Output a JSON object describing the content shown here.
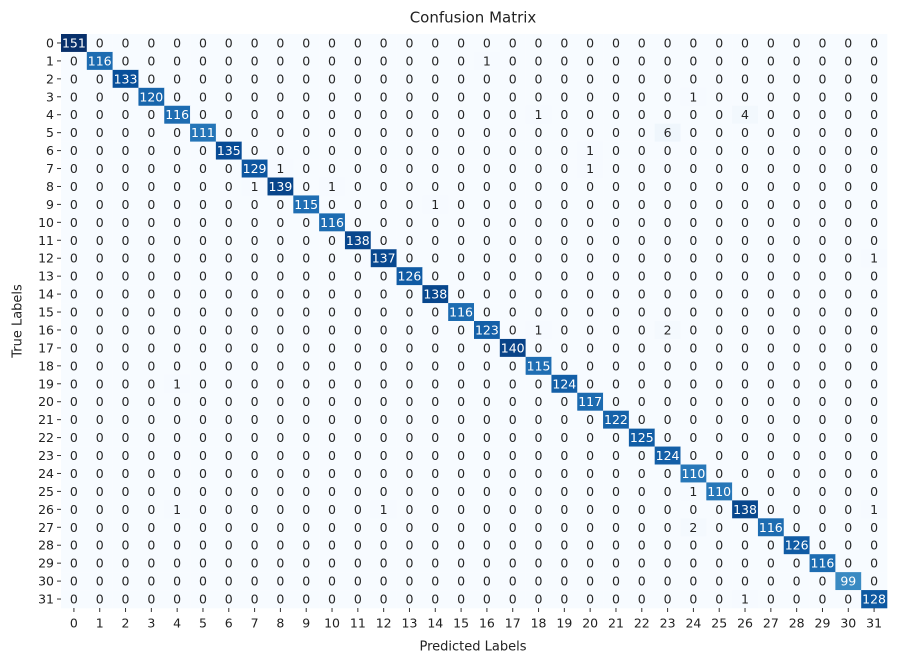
{
  "chart_data": {
    "type": "heatmap",
    "title": "Confusion Matrix",
    "x_label": "Predicted Labels",
    "y_label": "True Labels",
    "colormap": "Blues",
    "x_categories": [
      "0",
      "1",
      "2",
      "3",
      "4",
      "5",
      "6",
      "7",
      "8",
      "9",
      "10",
      "11",
      "12",
      "13",
      "14",
      "15",
      "16",
      "17",
      "18",
      "19",
      "20",
      "21",
      "22",
      "23",
      "24",
      "25",
      "26",
      "27",
      "28",
      "29",
      "30",
      "31"
    ],
    "y_categories": [
      "0",
      "1",
      "2",
      "3",
      "4",
      "5",
      "6",
      "7",
      "8",
      "9",
      "10",
      "11",
      "12",
      "13",
      "14",
      "15",
      "16",
      "17",
      "18",
      "19",
      "20",
      "21",
      "22",
      "23",
      "24",
      "25",
      "26",
      "27",
      "28",
      "29",
      "30",
      "31"
    ],
    "values": [
      [
        151,
        0,
        0,
        0,
        0,
        0,
        0,
        0,
        0,
        0,
        0,
        0,
        0,
        0,
        0,
        0,
        0,
        0,
        0,
        0,
        0,
        0,
        0,
        0,
        0,
        0,
        0,
        0,
        0,
        0,
        0,
        0
      ],
      [
        0,
        116,
        0,
        0,
        0,
        0,
        0,
        0,
        0,
        0,
        0,
        0,
        0,
        0,
        0,
        0,
        1,
        0,
        0,
        0,
        0,
        0,
        0,
        0,
        0,
        0,
        0,
        0,
        0,
        0,
        0,
        0
      ],
      [
        0,
        0,
        133,
        0,
        0,
        0,
        0,
        0,
        0,
        0,
        0,
        0,
        0,
        0,
        0,
        0,
        0,
        0,
        0,
        0,
        0,
        0,
        0,
        0,
        0,
        0,
        0,
        0,
        0,
        0,
        0,
        0
      ],
      [
        0,
        0,
        0,
        120,
        0,
        0,
        0,
        0,
        0,
        0,
        0,
        0,
        0,
        0,
        0,
        0,
        0,
        0,
        0,
        0,
        0,
        0,
        0,
        0,
        1,
        0,
        0,
        0,
        0,
        0,
        0,
        0
      ],
      [
        0,
        0,
        0,
        0,
        116,
        0,
        0,
        0,
        0,
        0,
        0,
        0,
        0,
        0,
        0,
        0,
        0,
        0,
        1,
        0,
        0,
        0,
        0,
        0,
        0,
        0,
        4,
        0,
        0,
        0,
        0,
        0
      ],
      [
        0,
        0,
        0,
        0,
        0,
        111,
        0,
        0,
        0,
        0,
        0,
        0,
        0,
        0,
        0,
        0,
        0,
        0,
        0,
        0,
        0,
        0,
        0,
        6,
        0,
        0,
        0,
        0,
        0,
        0,
        0,
        0
      ],
      [
        0,
        0,
        0,
        0,
        0,
        0,
        135,
        0,
        0,
        0,
        0,
        0,
        0,
        0,
        0,
        0,
        0,
        0,
        0,
        0,
        1,
        0,
        0,
        0,
        0,
        0,
        0,
        0,
        0,
        0,
        0,
        0
      ],
      [
        0,
        0,
        0,
        0,
        0,
        0,
        0,
        129,
        1,
        0,
        0,
        0,
        0,
        0,
        0,
        0,
        0,
        0,
        0,
        0,
        1,
        0,
        0,
        0,
        0,
        0,
        0,
        0,
        0,
        0,
        0,
        0
      ],
      [
        0,
        0,
        0,
        0,
        0,
        0,
        0,
        1,
        139,
        0,
        1,
        0,
        0,
        0,
        0,
        0,
        0,
        0,
        0,
        0,
        0,
        0,
        0,
        0,
        0,
        0,
        0,
        0,
        0,
        0,
        0,
        0
      ],
      [
        0,
        0,
        0,
        0,
        0,
        0,
        0,
        0,
        0,
        115,
        0,
        0,
        0,
        0,
        1,
        0,
        0,
        0,
        0,
        0,
        0,
        0,
        0,
        0,
        0,
        0,
        0,
        0,
        0,
        0,
        0,
        0
      ],
      [
        0,
        0,
        0,
        0,
        0,
        0,
        0,
        0,
        0,
        0,
        116,
        0,
        0,
        0,
        0,
        0,
        0,
        0,
        0,
        0,
        0,
        0,
        0,
        0,
        0,
        0,
        0,
        0,
        0,
        0,
        0,
        0
      ],
      [
        0,
        0,
        0,
        0,
        0,
        0,
        0,
        0,
        0,
        0,
        0,
        138,
        0,
        0,
        0,
        0,
        0,
        0,
        0,
        0,
        0,
        0,
        0,
        0,
        0,
        0,
        0,
        0,
        0,
        0,
        0,
        0
      ],
      [
        0,
        0,
        0,
        0,
        0,
        0,
        0,
        0,
        0,
        0,
        0,
        0,
        137,
        0,
        0,
        0,
        0,
        0,
        0,
        0,
        0,
        0,
        0,
        0,
        0,
        0,
        0,
        0,
        0,
        0,
        0,
        1
      ],
      [
        0,
        0,
        0,
        0,
        0,
        0,
        0,
        0,
        0,
        0,
        0,
        0,
        0,
        126,
        0,
        0,
        0,
        0,
        0,
        0,
        0,
        0,
        0,
        0,
        0,
        0,
        0,
        0,
        0,
        0,
        0,
        0
      ],
      [
        0,
        0,
        0,
        0,
        0,
        0,
        0,
        0,
        0,
        0,
        0,
        0,
        0,
        0,
        138,
        0,
        0,
        0,
        0,
        0,
        0,
        0,
        0,
        0,
        0,
        0,
        0,
        0,
        0,
        0,
        0,
        0
      ],
      [
        0,
        0,
        0,
        0,
        0,
        0,
        0,
        0,
        0,
        0,
        0,
        0,
        0,
        0,
        0,
        116,
        0,
        0,
        0,
        0,
        0,
        0,
        0,
        0,
        0,
        0,
        0,
        0,
        0,
        0,
        0,
        0
      ],
      [
        0,
        0,
        0,
        0,
        0,
        0,
        0,
        0,
        0,
        0,
        0,
        0,
        0,
        0,
        0,
        0,
        123,
        0,
        1,
        0,
        0,
        0,
        0,
        2,
        0,
        0,
        0,
        0,
        0,
        0,
        0,
        0
      ],
      [
        0,
        0,
        0,
        0,
        0,
        0,
        0,
        0,
        0,
        0,
        0,
        0,
        0,
        0,
        0,
        0,
        0,
        140,
        0,
        0,
        0,
        0,
        0,
        0,
        0,
        0,
        0,
        0,
        0,
        0,
        0,
        0
      ],
      [
        0,
        0,
        0,
        0,
        0,
        0,
        0,
        0,
        0,
        0,
        0,
        0,
        0,
        0,
        0,
        0,
        0,
        0,
        115,
        0,
        0,
        0,
        0,
        0,
        0,
        0,
        0,
        0,
        0,
        0,
        0,
        0
      ],
      [
        0,
        0,
        0,
        0,
        1,
        0,
        0,
        0,
        0,
        0,
        0,
        0,
        0,
        0,
        0,
        0,
        0,
        0,
        0,
        124,
        0,
        0,
        0,
        0,
        0,
        0,
        0,
        0,
        0,
        0,
        0,
        0
      ],
      [
        0,
        0,
        0,
        0,
        0,
        0,
        0,
        0,
        0,
        0,
        0,
        0,
        0,
        0,
        0,
        0,
        0,
        0,
        0,
        0,
        117,
        0,
        0,
        0,
        0,
        0,
        0,
        0,
        0,
        0,
        0,
        0
      ],
      [
        0,
        0,
        0,
        0,
        0,
        0,
        0,
        0,
        0,
        0,
        0,
        0,
        0,
        0,
        0,
        0,
        0,
        0,
        0,
        0,
        0,
        122,
        0,
        0,
        0,
        0,
        0,
        0,
        0,
        0,
        0,
        0
      ],
      [
        0,
        0,
        0,
        0,
        0,
        0,
        0,
        0,
        0,
        0,
        0,
        0,
        0,
        0,
        0,
        0,
        0,
        0,
        0,
        0,
        0,
        0,
        125,
        0,
        0,
        0,
        0,
        0,
        0,
        0,
        0,
        0
      ],
      [
        0,
        0,
        0,
        0,
        0,
        0,
        0,
        0,
        0,
        0,
        0,
        0,
        0,
        0,
        0,
        0,
        0,
        0,
        0,
        0,
        0,
        0,
        0,
        124,
        0,
        0,
        0,
        0,
        0,
        0,
        0,
        0
      ],
      [
        0,
        0,
        0,
        0,
        0,
        0,
        0,
        0,
        0,
        0,
        0,
        0,
        0,
        0,
        0,
        0,
        0,
        0,
        0,
        0,
        0,
        0,
        0,
        0,
        110,
        0,
        0,
        0,
        0,
        0,
        0,
        0
      ],
      [
        0,
        0,
        0,
        0,
        0,
        0,
        0,
        0,
        0,
        0,
        0,
        0,
        0,
        0,
        0,
        0,
        0,
        0,
        0,
        0,
        0,
        0,
        0,
        0,
        1,
        110,
        0,
        0,
        0,
        0,
        0,
        0
      ],
      [
        0,
        0,
        0,
        0,
        1,
        0,
        0,
        0,
        0,
        0,
        0,
        0,
        1,
        0,
        0,
        0,
        0,
        0,
        0,
        0,
        0,
        0,
        0,
        0,
        0,
        0,
        138,
        0,
        0,
        0,
        0,
        1
      ],
      [
        0,
        0,
        0,
        0,
        0,
        0,
        0,
        0,
        0,
        0,
        0,
        0,
        0,
        0,
        0,
        0,
        0,
        0,
        0,
        0,
        0,
        0,
        0,
        0,
        2,
        0,
        0,
        116,
        0,
        0,
        0,
        0
      ],
      [
        0,
        0,
        0,
        0,
        0,
        0,
        0,
        0,
        0,
        0,
        0,
        0,
        0,
        0,
        0,
        0,
        0,
        0,
        0,
        0,
        0,
        0,
        0,
        0,
        0,
        0,
        0,
        0,
        126,
        0,
        0,
        0
      ],
      [
        0,
        0,
        0,
        0,
        0,
        0,
        0,
        0,
        0,
        0,
        0,
        0,
        0,
        0,
        0,
        0,
        0,
        0,
        0,
        0,
        0,
        0,
        0,
        0,
        0,
        0,
        0,
        0,
        0,
        116,
        0,
        0
      ],
      [
        0,
        0,
        0,
        0,
        0,
        0,
        0,
        0,
        0,
        0,
        0,
        0,
        0,
        0,
        0,
        0,
        0,
        0,
        0,
        0,
        0,
        0,
        0,
        0,
        0,
        0,
        0,
        0,
        0,
        0,
        99,
        0
      ],
      [
        0,
        0,
        0,
        0,
        0,
        0,
        0,
        0,
        0,
        0,
        0,
        0,
        0,
        0,
        0,
        0,
        0,
        0,
        0,
        0,
        0,
        0,
        0,
        0,
        0,
        0,
        1,
        0,
        0,
        0,
        0,
        128
      ]
    ]
  }
}
